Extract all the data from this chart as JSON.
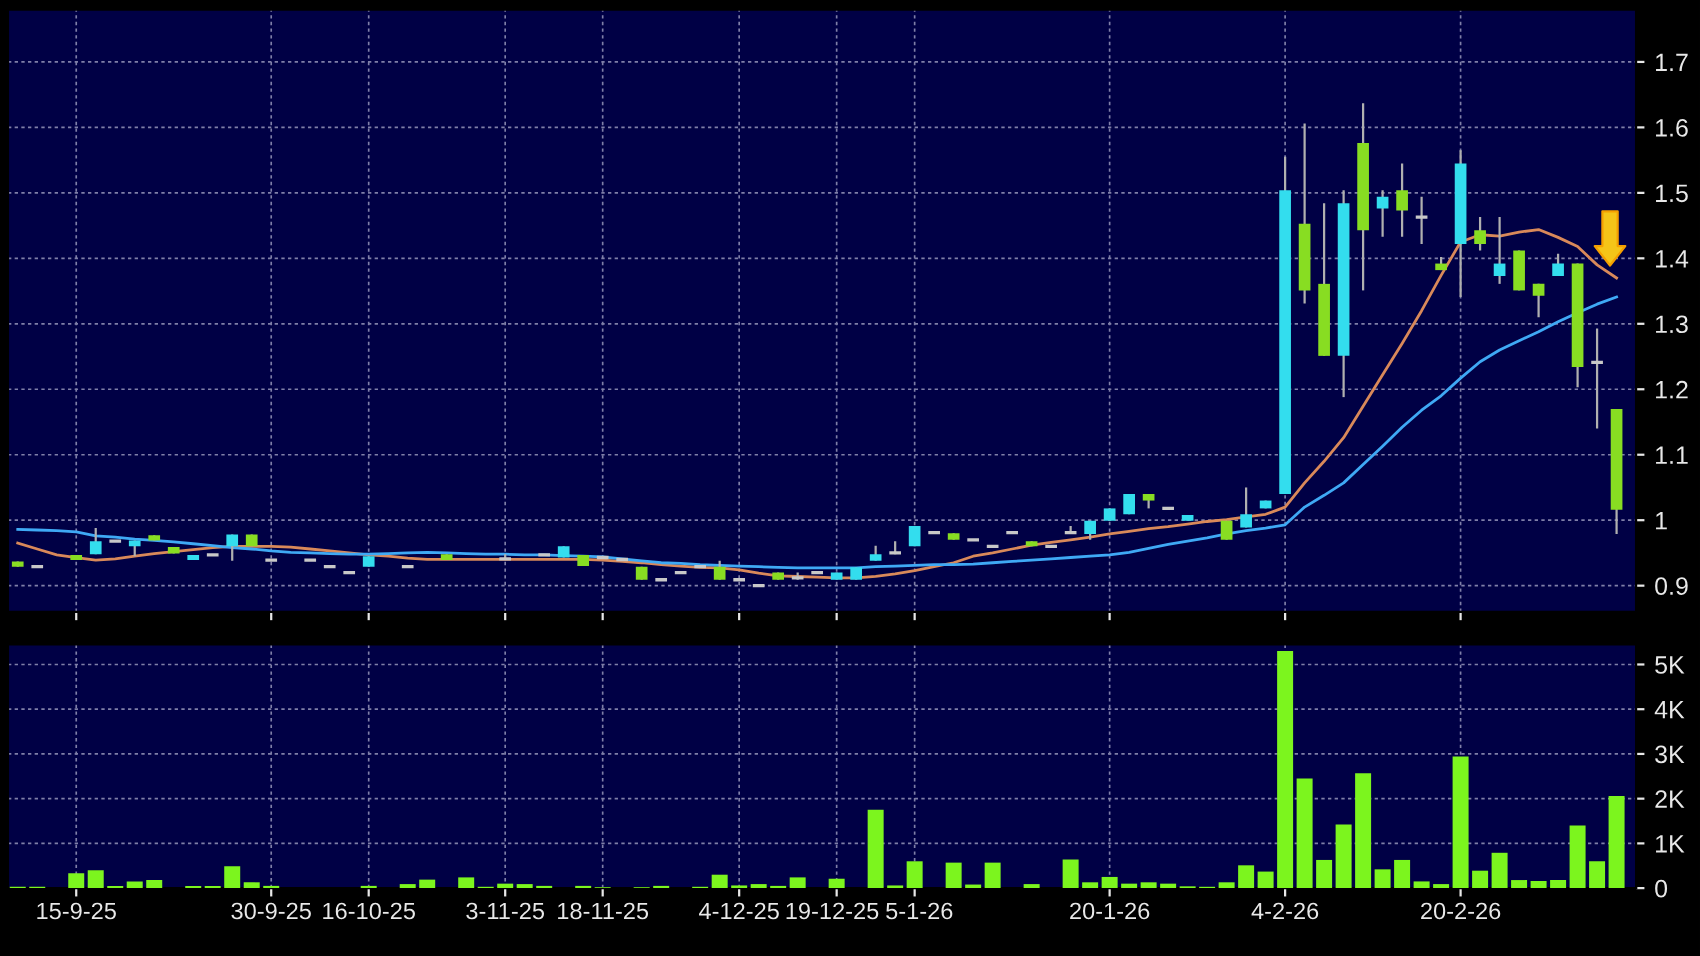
{
  "chart_data": [
    {
      "type": "candlestick",
      "categories": [
        null,
        null,
        null,
        null,
        null,
        null,
        null,
        null,
        null,
        null,
        null,
        null,
        null,
        null,
        null,
        null,
        null,
        null,
        null,
        null,
        null,
        null,
        null,
        null,
        null,
        null,
        null,
        null,
        null,
        null,
        null,
        null,
        null,
        null,
        null,
        null,
        null,
        null,
        null,
        null,
        null,
        null,
        null,
        null,
        null,
        null,
        null,
        null,
        null,
        null,
        null,
        null,
        null,
        null,
        null,
        null,
        null,
        null,
        null,
        null,
        null,
        null,
        null,
        null,
        null,
        null,
        null,
        null,
        null,
        null,
        null,
        null,
        null,
        null,
        null,
        null,
        null,
        null,
        null,
        null,
        null,
        null,
        null
      ],
      "ohlc": [
        [
          0.937,
          0.937,
          0.929,
          0.929
        ],
        [
          0.929,
          0.929,
          0.929,
          0.929
        ],
        null,
        [
          0.947,
          0.947,
          0.939,
          0.939
        ],
        [
          0.948,
          0.988,
          0.948,
          0.968
        ],
        [
          0.968,
          0.968,
          0.968,
          0.968
        ],
        [
          0.96,
          0.969,
          0.945,
          0.969
        ],
        [
          0.977,
          0.977,
          0.969,
          0.969
        ],
        [
          0.959,
          0.959,
          0.949,
          0.949
        ],
        [
          0.939,
          0.947,
          0.939,
          0.947
        ],
        [
          0.947,
          0.947,
          0.947,
          0.947
        ],
        [
          0.96,
          0.978,
          0.938,
          0.978
        ],
        [
          0.978,
          0.978,
          0.96,
          0.96
        ],
        [
          0.939,
          0.939,
          0.939,
          0.939
        ],
        null,
        [
          0.939,
          0.939,
          0.939,
          0.939
        ],
        [
          0.929,
          0.929,
          0.929,
          0.929
        ],
        [
          0.92,
          0.92,
          0.92,
          0.92
        ],
        [
          0.929,
          0.945,
          0.929,
          0.945
        ],
        null,
        [
          0.929,
          0.929,
          0.929,
          0.929
        ],
        null,
        [
          0.948,
          0.948,
          0.939,
          0.939
        ],
        null,
        null,
        [
          0.941,
          0.948,
          0.939,
          0.941
        ],
        null,
        [
          0.947,
          0.947,
          0.947,
          0.947
        ],
        [
          0.943,
          0.96,
          0.943,
          0.96
        ],
        [
          0.947,
          0.947,
          0.93,
          0.93
        ],
        [
          0.943,
          0.943,
          0.943,
          0.943
        ],
        [
          0.94,
          0.94,
          0.94,
          0.94
        ],
        [
          0.929,
          0.929,
          0.909,
          0.909
        ],
        [
          0.909,
          0.909,
          0.909,
          0.909
        ],
        [
          0.92,
          0.92,
          0.92,
          0.92
        ],
        [
          0.929,
          0.929,
          0.929,
          0.929
        ],
        [
          0.929,
          0.938,
          0.909,
          0.909
        ],
        [
          0.909,
          0.909,
          0.909,
          0.909
        ],
        [
          0.9,
          0.9,
          0.9,
          0.9
        ],
        [
          0.92,
          0.92,
          0.909,
          0.909
        ],
        [
          0.912,
          0.92,
          0.909,
          0.912
        ],
        [
          0.92,
          0.92,
          0.92,
          0.92
        ],
        [
          0.909,
          0.92,
          0.909,
          0.92
        ],
        [
          0.909,
          0.928,
          0.909,
          0.928
        ],
        [
          0.938,
          0.961,
          0.938,
          0.948
        ],
        [
          0.95,
          0.968,
          0.948,
          0.95
        ],
        [
          0.96,
          0.991,
          0.96,
          0.991
        ],
        [
          0.981,
          0.981,
          0.981,
          0.981
        ],
        [
          0.98,
          0.98,
          0.97,
          0.97
        ],
        [
          0.97,
          0.97,
          0.97,
          0.97
        ],
        [
          0.96,
          0.96,
          0.96,
          0.96
        ],
        [
          0.981,
          0.981,
          0.981,
          0.981
        ],
        [
          0.968,
          0.968,
          0.96,
          0.96
        ],
        [
          0.96,
          0.96,
          0.96,
          0.96
        ],
        [
          0.981,
          0.991,
          0.979,
          0.981
        ],
        [
          0.979,
          0.999,
          0.97,
          0.999
        ],
        [
          0.999,
          1.018,
          0.999,
          1.018
        ],
        [
          1.009,
          1.04,
          1.009,
          1.04
        ],
        [
          1.04,
          1.04,
          1.018,
          1.03
        ],
        [
          1.018,
          1.018,
          1.018,
          1.018
        ],
        [
          0.999,
          1.008,
          0.999,
          1.008
        ],
        null,
        [
          0.999,
          0.999,
          0.97,
          0.97
        ],
        [
          0.989,
          1.05,
          0.989,
          1.009
        ],
        [
          1.018,
          1.03,
          1.018,
          1.03
        ],
        [
          1.04,
          1.555,
          1.04,
          1.504
        ],
        [
          1.453,
          1.606,
          1.331,
          1.351
        ],
        [
          1.361,
          1.484,
          1.251,
          1.251
        ],
        [
          1.251,
          1.504,
          1.188,
          1.484
        ],
        [
          1.576,
          1.637,
          1.351,
          1.443
        ],
        [
          1.476,
          1.504,
          1.433,
          1.494
        ],
        [
          1.504,
          1.545,
          1.433,
          1.473
        ],
        [
          1.463,
          1.494,
          1.422,
          1.463
        ],
        [
          1.392,
          1.402,
          1.382,
          1.382
        ],
        [
          1.422,
          1.565,
          1.341,
          1.545
        ],
        [
          1.443,
          1.463,
          1.412,
          1.422
        ],
        [
          1.373,
          1.463,
          1.361,
          1.392
        ],
        [
          1.412,
          1.412,
          1.351,
          1.351
        ],
        [
          1.361,
          1.361,
          1.31,
          1.343
        ],
        [
          1.373,
          1.407,
          1.373,
          1.392
        ],
        [
          1.392,
          1.392,
          1.203,
          1.234
        ],
        [
          1.241,
          1.293,
          1.14,
          1.241
        ],
        [
          1.17,
          1.17,
          0.979,
          1.016
        ]
      ],
      "colors": [
        "#88dd22",
        "#c8c8c8",
        null,
        "#88dd22",
        "#33ddee",
        "#c8c8c8",
        "#33ddee",
        "#88dd22",
        "#88dd22",
        "#33ddee",
        "#c8c8c8",
        "#33ddee",
        "#88dd22",
        "#c8c8c8",
        null,
        "#c8c8c8",
        "#c8c8c8",
        "#c8c8c8",
        "#33ddee",
        null,
        "#c8c8c8",
        null,
        "#88dd22",
        null,
        null,
        "#c8c8c8",
        null,
        "#c8c8c8",
        "#33ddee",
        "#88dd22",
        "#c8c8c8",
        "#c8c8c8",
        "#88dd22",
        "#c8c8c8",
        "#c8c8c8",
        "#c8c8c8",
        "#88dd22",
        "#c8c8c8",
        "#c8c8c8",
        "#88dd22",
        "#c8c8c8",
        "#c8c8c8",
        "#33ddee",
        "#33ddee",
        "#33ddee",
        "#c8c8c8",
        "#33ddee",
        "#c8c8c8",
        "#88dd22",
        "#c8c8c8",
        "#c8c8c8",
        "#c8c8c8",
        "#88dd22",
        "#c8c8c8",
        "#c8c8c8",
        "#33ddee",
        "#33ddee",
        "#33ddee",
        "#88dd22",
        "#c8c8c8",
        "#33ddee",
        null,
        "#88dd22",
        "#33ddee",
        "#33ddee",
        "#33ddee",
        "#88dd22",
        "#88dd22",
        "#33ddee",
        "#88dd22",
        "#33ddee",
        "#88dd22",
        "#c8c8c8",
        "#88dd22",
        "#33ddee",
        "#88dd22",
        "#33ddee",
        "#88dd22",
        "#88dd22",
        "#33ddee",
        "#88dd22",
        "#c8c8c8",
        "#88dd22"
      ],
      "series": [
        {
          "type": "line",
          "color": "#d9895a",
          "values": [
            0.965,
            0.956,
            0.947,
            0.943,
            0.939,
            0.941,
            0.945,
            0.949,
            0.952,
            0.955,
            0.958,
            0.96,
            0.96,
            0.96,
            0.959,
            0.956,
            0.953,
            0.95,
            0.947,
            0.945,
            0.942,
            0.94,
            0.94,
            0.94,
            0.94,
            0.94,
            0.94,
            0.94,
            0.94,
            0.94,
            0.939,
            0.937,
            0.935,
            0.932,
            0.93,
            0.928,
            0.927,
            0.924,
            0.919,
            0.915,
            0.914,
            0.913,
            0.912,
            0.912,
            0.914,
            0.918,
            0.923,
            0.929,
            0.935,
            0.945,
            0.95,
            0.956,
            0.962,
            0.966,
            0.97,
            0.974,
            0.979,
            0.983,
            0.987,
            0.99,
            0.994,
            0.998,
            1.001,
            1.005,
            1.009,
            1.02,
            1.057,
            1.09,
            1.126,
            1.174,
            1.222,
            1.27,
            1.32,
            1.374,
            1.425,
            1.436,
            1.434,
            1.44,
            1.444,
            1.432,
            1.418,
            1.39,
            1.37
          ]
        },
        {
          "type": "line",
          "color": "#3fa9f5",
          "values": [
            0.986,
            0.985,
            0.984,
            0.982,
            0.976,
            0.974,
            0.971,
            0.969,
            0.967,
            0.964,
            0.961,
            0.958,
            0.956,
            0.953,
            0.951,
            0.95,
            0.949,
            0.948,
            0.948,
            0.949,
            0.95,
            0.951,
            0.95,
            0.949,
            0.948,
            0.948,
            0.947,
            0.947,
            0.946,
            0.945,
            0.944,
            0.941,
            0.938,
            0.935,
            0.934,
            0.932,
            0.931,
            0.93,
            0.929,
            0.928,
            0.927,
            0.927,
            0.927,
            0.927,
            0.929,
            0.93,
            0.931,
            0.932,
            0.932,
            0.933,
            0.935,
            0.937,
            0.939,
            0.941,
            0.943,
            0.945,
            0.947,
            0.951,
            0.957,
            0.963,
            0.968,
            0.973,
            0.979,
            0.984,
            0.988,
            0.993,
            1.02,
            1.038,
            1.057,
            1.085,
            1.113,
            1.142,
            1.168,
            1.19,
            1.217,
            1.242,
            1.26,
            1.274,
            1.288,
            1.303,
            1.317,
            1.33,
            1.341
          ]
        }
      ],
      "ylim": [
        0.86,
        1.78
      ],
      "yticks": [
        0.9,
        1,
        1.1,
        1.2,
        1.3,
        1.4,
        1.5,
        1.6,
        1.7
      ],
      "grid": true,
      "tick_labels": "y"
    },
    {
      "type": "bar",
      "categories": [
        null,
        null,
        null,
        "15-9-25",
        null,
        null,
        null,
        null,
        null,
        null,
        null,
        null,
        null,
        "30-9-25",
        null,
        null,
        null,
        null,
        "16-10-25",
        null,
        null,
        null,
        null,
        null,
        null,
        "3-11-25",
        null,
        null,
        null,
        null,
        "18-11-25",
        null,
        null,
        null,
        null,
        null,
        null,
        "4-12-25",
        null,
        null,
        null,
        null,
        "19-12-25",
        null,
        null,
        null,
        "5-1-26",
        null,
        null,
        null,
        null,
        null,
        null,
        null,
        null,
        null,
        "20-1-26",
        null,
        null,
        null,
        null,
        null,
        null,
        null,
        null,
        "4-2-26",
        null,
        null,
        null,
        null,
        null,
        null,
        null,
        null,
        "20-2-26",
        null,
        null,
        null,
        null,
        null,
        null,
        null,
        null
      ],
      "values": [
        0.03,
        0.03,
        0,
        0.33,
        0.4,
        0.05,
        0.15,
        0.18,
        0,
        0.05,
        0.05,
        0.49,
        0.13,
        0.05,
        0,
        0,
        0,
        0,
        0.05,
        0,
        0.09,
        0.19,
        0,
        0.24,
        0.03,
        0.1,
        0.09,
        0.05,
        0,
        0.05,
        0.02,
        0,
        0.02,
        0.05,
        0,
        0.03,
        0.3,
        0.06,
        0.09,
        0.05,
        0.24,
        0,
        0.21,
        0,
        1.75,
        0.06,
        0.6,
        0,
        0.57,
        0.08,
        0.57,
        0,
        0.09,
        0,
        0.64,
        0.13,
        0.25,
        0.1,
        0.13,
        0.1,
        0.04,
        0.03,
        0.13,
        0.51,
        0.37,
        5.3,
        2.45,
        0.63,
        1.42,
        2.57,
        0.42,
        0.63,
        0.15,
        0.09,
        2.94,
        0.39,
        0.79,
        0.18,
        0.16,
        0.18,
        1.4,
        0.6,
        2.06
      ],
      "color": "#7cf51e",
      "ylim": [
        0,
        5.45
      ],
      "yticks": [
        {
          "value": 0,
          "label": "0"
        },
        {
          "value": 1,
          "label": "1K"
        },
        {
          "value": 2,
          "label": "2K"
        },
        {
          "value": 3,
          "label": "3K"
        },
        {
          "value": 4,
          "label": "4K"
        },
        {
          "value": 5,
          "label": "5K"
        }
      ],
      "grid": true
    }
  ]
}
